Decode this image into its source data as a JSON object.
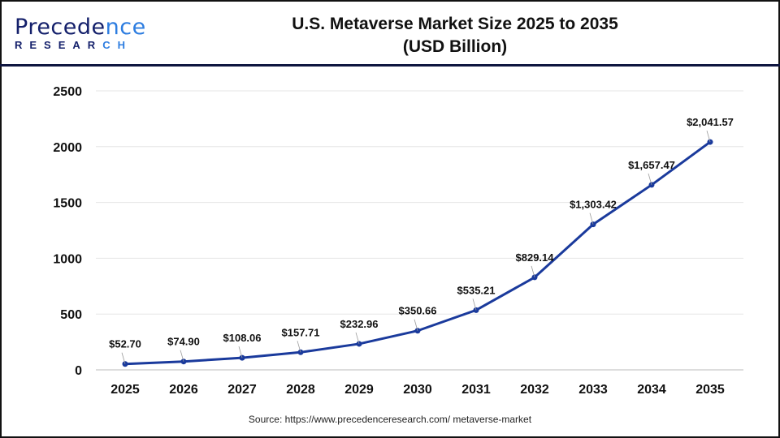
{
  "logo": {
    "line1_a": "P",
    "line1_b": "recede",
    "line1_c": "nce",
    "line2_a": "RESEAR",
    "line2_b": "CH"
  },
  "header": {
    "title_line1": "U.S. Metaverse Market Size 2025 to 2035",
    "title_line2": "(USD Billion)"
  },
  "source": "Source: https://www.precedenceresearch.com/ metaverse-market",
  "colors": {
    "line": "#1a3a9c",
    "header_rule": "#0f1640",
    "logo_dark": "#14206b",
    "logo_light": "#2d7de0"
  },
  "chart_data": {
    "type": "line",
    "title": "U.S. Metaverse Market Size 2025 to 2035 (USD Billion)",
    "categories": [
      "2025",
      "2026",
      "2027",
      "2028",
      "2029",
      "2030",
      "2031",
      "2032",
      "2033",
      "2034",
      "2035"
    ],
    "values": [
      52.7,
      74.9,
      108.06,
      157.71,
      232.96,
      350.66,
      535.21,
      829.14,
      1303.42,
      1657.47,
      2041.57
    ],
    "data_labels": [
      "$52.70",
      "$74.90",
      "$108.06",
      "$157.71",
      "$232.96",
      "$350.66",
      "$535.21",
      "$829.14",
      "$1,303.42",
      "$1,657.47",
      "$2,041.57"
    ],
    "yticks": [
      0,
      500,
      1000,
      1500,
      2000,
      2500
    ],
    "ylim": [
      0,
      2500
    ],
    "grid": true,
    "xlabel": "",
    "ylabel": ""
  }
}
